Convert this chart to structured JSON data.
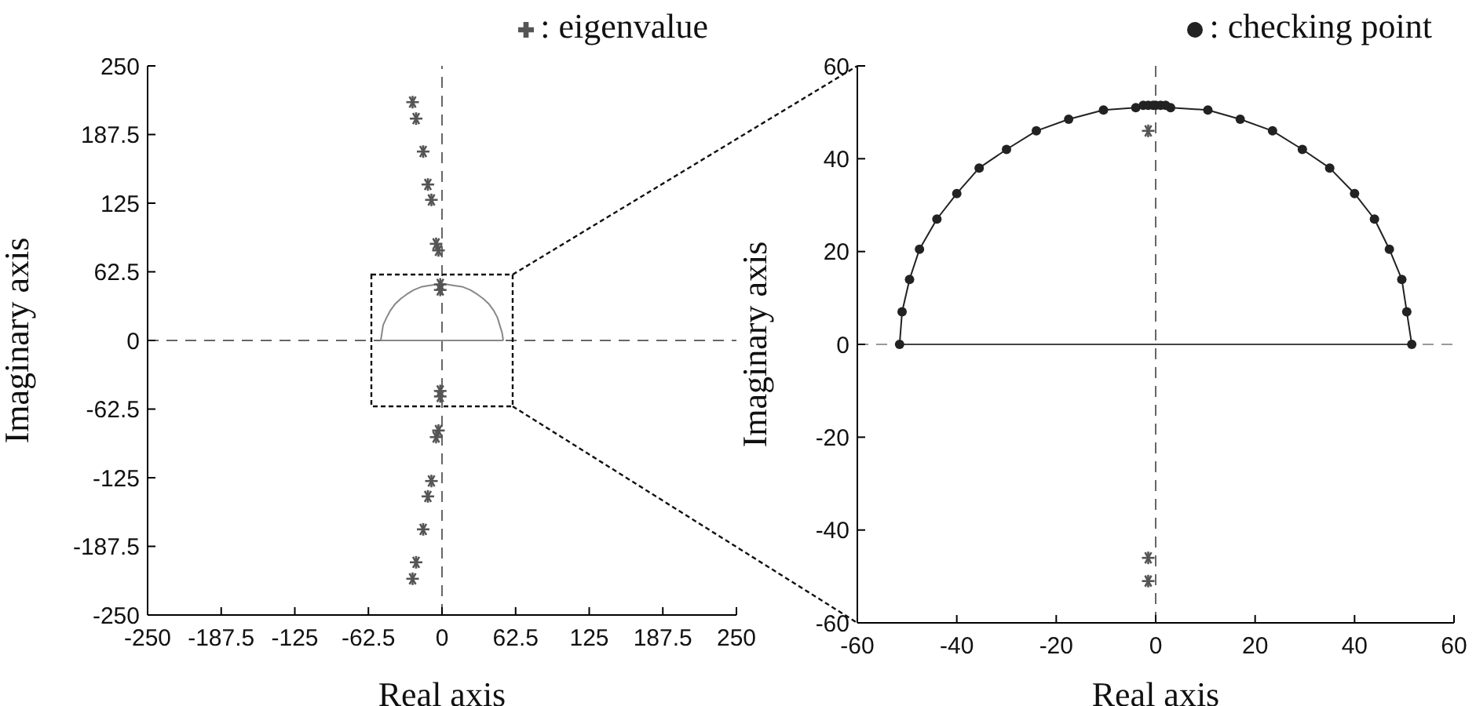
{
  "chart_data": [
    {
      "type": "scatter",
      "xlabel": "Real axis",
      "ylabel": "Imaginary axis",
      "xlim": [
        -250,
        250
      ],
      "ylim": [
        -250,
        250
      ],
      "xticks": [
        -250,
        -187.5,
        -125,
        -62.5,
        0,
        62.5,
        125,
        187.5,
        250
      ],
      "yticks": [
        -250,
        -187.5,
        -125,
        -62.5,
        0,
        62.5,
        125,
        187.5,
        250
      ],
      "legend": "top right",
      "ref_lines": [
        {
          "axis": "x",
          "value": 0,
          "color": "#666666",
          "line_style": "dashed"
        },
        {
          "axis": "y",
          "value": 0,
          "color": "#666666",
          "line_style": "dashed"
        }
      ],
      "series": [
        {
          "name": ": eigenvalue",
          "marker": "cross",
          "color": "#555555",
          "x": [
            -25,
            -22,
            -16,
            -12,
            -9,
            -5,
            -3,
            -1.5,
            -1.5,
            -1.5,
            -1.5,
            -3,
            -5,
            -9,
            -12,
            -16,
            -22,
            -25
          ],
          "values": [
            217,
            202,
            172,
            142,
            128,
            88,
            82,
            51,
            46,
            -46,
            -51,
            -82,
            -88,
            -128,
            -142,
            -172,
            -202,
            -217
          ]
        },
        {
          "type": "line",
          "marker": "none",
          "color": "#888888",
          "x": [
            -52,
            -51,
            -50,
            -47,
            -44,
            -40,
            -35,
            -30,
            -24,
            -17,
            -11,
            -4,
            0,
            4,
            10,
            17,
            24,
            30,
            35,
            40,
            44,
            47,
            49,
            51,
            52
          ],
          "values": [
            0,
            7,
            14,
            21,
            27,
            33,
            38,
            42,
            46,
            49,
            50,
            51,
            52,
            51,
            50,
            49,
            46,
            42,
            38,
            33,
            27,
            21,
            14,
            7,
            0
          ]
        },
        {
          "type": "line",
          "marker": "none",
          "color": "#888888",
          "x": [
            -52,
            52
          ],
          "values": [
            0,
            0
          ]
        }
      ]
    },
    {
      "type": "line",
      "xlabel": "Real axis",
      "ylabel": "Imaginary axis",
      "xlim": [
        -60,
        60
      ],
      "ylim": [
        -60,
        60
      ],
      "xticks": [
        -60,
        -40,
        -20,
        0,
        20,
        40,
        60
      ],
      "yticks": [
        -60,
        -40,
        -20,
        0,
        20,
        40,
        60
      ],
      "legend": "top right",
      "ref_lines": [
        {
          "axis": "x",
          "value": 0,
          "color": "#666666",
          "line_style": "dashed"
        },
        {
          "axis": "y",
          "value": 0,
          "color": "#999999",
          "line_style": "dashed"
        }
      ],
      "series": [
        {
          "name": ": checking point",
          "marker": "circle",
          "color": "#222222",
          "x": [
            -51.5,
            -51,
            -49.5,
            -47.5,
            -44,
            -40,
            -35.5,
            -30,
            -24,
            -17.5,
            -10.5,
            -4,
            -2.5,
            -1.5,
            -0.5,
            0,
            1,
            2,
            3,
            10.5,
            17,
            23.5,
            29.5,
            35,
            40,
            44,
            47,
            49.5,
            50.5,
            51.5
          ],
          "values": [
            0,
            7,
            14,
            20.5,
            27,
            32.5,
            38,
            42,
            46,
            48.5,
            50.5,
            51,
            51.5,
            51.5,
            51.5,
            51.5,
            51.5,
            51.5,
            51,
            50.5,
            48.5,
            46,
            42,
            38,
            32.5,
            27,
            20.5,
            14,
            7,
            0
          ]
        },
        {
          "type": "line",
          "marker": "none",
          "color": "#444444",
          "x": [
            -51.5,
            51.5
          ],
          "values": [
            0,
            0
          ]
        },
        {
          "type": "scatter",
          "marker": "cross",
          "color": "#555555",
          "x": [
            -1.5,
            -1.5,
            -1.5
          ],
          "values": [
            46,
            -46,
            -51
          ]
        }
      ]
    }
  ]
}
